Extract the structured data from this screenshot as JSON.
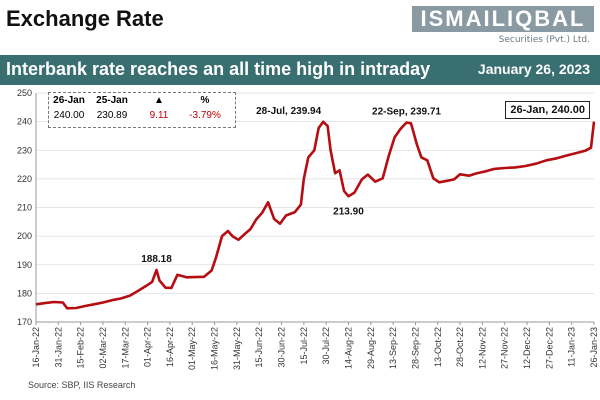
{
  "header": {
    "title": "Exchange Rate",
    "logo_main": "ISMAILIQBAL",
    "logo_sub": "Securities (Pvt.) Ltd.",
    "banner_text": "Interbank rate reaches an all time high in intraday",
    "banner_date": "January 26, 2023"
  },
  "info_box": {
    "headers": [
      "26-Jan",
      "25-Jan",
      "▲",
      "%"
    ],
    "values": [
      "240.00",
      "230.89",
      "9.11",
      "-3.79%"
    ]
  },
  "source": "Source: SBP, IIS Research",
  "colors": {
    "line": "#b50d12",
    "banner": "#3a6f72",
    "grid": "#dddddd"
  },
  "chart_data": {
    "type": "line",
    "title": "",
    "xlabel": "",
    "ylabel": "",
    "ylim": [
      170,
      250
    ],
    "yticks": [
      170,
      180,
      190,
      200,
      210,
      220,
      230,
      240,
      250
    ],
    "xticks": [
      "16-Jan-22",
      "31-Jan-22",
      "15-Feb-22",
      "02-Mar-22",
      "17-Mar-22",
      "01-Apr-22",
      "16-Apr-22",
      "01-May-22",
      "16-May-22",
      "31-May-22",
      "15-Jun-22",
      "30-Jun-22",
      "15-Jul-22",
      "30-Jul-22",
      "14-Aug-22",
      "29-Aug-22",
      "13-Sep-22",
      "28-Sep-22",
      "13-Oct-22",
      "28-Oct-22",
      "12-Nov-22",
      "27-Nov-22",
      "12-Dec-22",
      "27-Dec-22",
      "11-Jan-23",
      "26-Jan-23"
    ],
    "grid": true,
    "series": [
      {
        "values": [
          {
            "x": "2022-01-16",
            "y": 176.2
          },
          {
            "x": "2022-01-22",
            "y": 176.6
          },
          {
            "x": "2022-01-28",
            "y": 177.0
          },
          {
            "x": "2022-02-03",
            "y": 176.8
          },
          {
            "x": "2022-02-06",
            "y": 174.8
          },
          {
            "x": "2022-02-12",
            "y": 174.9
          },
          {
            "x": "2022-02-18",
            "y": 175.6
          },
          {
            "x": "2022-02-24",
            "y": 176.2
          },
          {
            "x": "2022-03-02",
            "y": 176.8
          },
          {
            "x": "2022-03-08",
            "y": 177.6
          },
          {
            "x": "2022-03-14",
            "y": 178.2
          },
          {
            "x": "2022-03-20",
            "y": 179.2
          },
          {
            "x": "2022-03-26",
            "y": 181.0
          },
          {
            "x": "2022-03-31",
            "y": 182.6
          },
          {
            "x": "2022-04-04",
            "y": 184.0
          },
          {
            "x": "2022-04-07",
            "y": 188.18
          },
          {
            "x": "2022-04-09",
            "y": 184.5
          },
          {
            "x": "2022-04-13",
            "y": 182.0
          },
          {
            "x": "2022-04-17",
            "y": 181.9
          },
          {
            "x": "2022-04-21",
            "y": 186.5
          },
          {
            "x": "2022-04-27",
            "y": 185.6
          },
          {
            "x": "2022-05-03",
            "y": 185.7
          },
          {
            "x": "2022-05-09",
            "y": 185.8
          },
          {
            "x": "2022-05-14",
            "y": 188.0
          },
          {
            "x": "2022-05-17",
            "y": 192.5
          },
          {
            "x": "2022-05-21",
            "y": 200.0
          },
          {
            "x": "2022-05-25",
            "y": 201.8
          },
          {
            "x": "2022-05-28",
            "y": 200.0
          },
          {
            "x": "2022-06-01",
            "y": 198.7
          },
          {
            "x": "2022-06-05",
            "y": 200.6
          },
          {
            "x": "2022-06-09",
            "y": 202.4
          },
          {
            "x": "2022-06-13",
            "y": 205.8
          },
          {
            "x": "2022-06-17",
            "y": 208.2
          },
          {
            "x": "2022-06-21",
            "y": 211.8
          },
          {
            "x": "2022-06-25",
            "y": 206.0
          },
          {
            "x": "2022-06-29",
            "y": 204.3
          },
          {
            "x": "2022-07-03",
            "y": 207.2
          },
          {
            "x": "2022-07-09",
            "y": 208.4
          },
          {
            "x": "2022-07-13",
            "y": 211.0
          },
          {
            "x": "2022-07-15",
            "y": 220.0
          },
          {
            "x": "2022-07-18",
            "y": 227.5
          },
          {
            "x": "2022-07-22",
            "y": 230.0
          },
          {
            "x": "2022-07-25",
            "y": 237.8
          },
          {
            "x": "2022-07-28",
            "y": 239.94
          },
          {
            "x": "2022-07-31",
            "y": 238.5
          },
          {
            "x": "2022-08-02",
            "y": 230.0
          },
          {
            "x": "2022-08-05",
            "y": 222.0
          },
          {
            "x": "2022-08-08",
            "y": 223.0
          },
          {
            "x": "2022-08-11",
            "y": 215.8
          },
          {
            "x": "2022-08-14",
            "y": 213.9
          },
          {
            "x": "2022-08-18",
            "y": 215.2
          },
          {
            "x": "2022-08-23",
            "y": 219.8
          },
          {
            "x": "2022-08-27",
            "y": 221.5
          },
          {
            "x": "2022-09-01",
            "y": 219.0
          },
          {
            "x": "2022-09-06",
            "y": 220.2
          },
          {
            "x": "2022-09-10",
            "y": 228.0
          },
          {
            "x": "2022-09-14",
            "y": 234.5
          },
          {
            "x": "2022-09-18",
            "y": 237.5
          },
          {
            "x": "2022-09-22",
            "y": 239.71
          },
          {
            "x": "2022-09-25",
            "y": 239.4
          },
          {
            "x": "2022-09-29",
            "y": 232.0
          },
          {
            "x": "2022-10-02",
            "y": 227.5
          },
          {
            "x": "2022-10-06",
            "y": 226.5
          },
          {
            "x": "2022-10-10",
            "y": 220.2
          },
          {
            "x": "2022-10-14",
            "y": 218.8
          },
          {
            "x": "2022-10-18",
            "y": 219.2
          },
          {
            "x": "2022-10-24",
            "y": 219.8
          },
          {
            "x": "2022-10-28",
            "y": 221.6
          },
          {
            "x": "2022-11-03",
            "y": 221.1
          },
          {
            "x": "2022-11-08",
            "y": 221.9
          },
          {
            "x": "2022-11-14",
            "y": 222.6
          },
          {
            "x": "2022-11-20",
            "y": 223.5
          },
          {
            "x": "2022-11-27",
            "y": 223.8
          },
          {
            "x": "2022-12-04",
            "y": 224.0
          },
          {
            "x": "2022-12-11",
            "y": 224.5
          },
          {
            "x": "2022-12-18",
            "y": 225.3
          },
          {
            "x": "2022-12-25",
            "y": 226.5
          },
          {
            "x": "2023-01-01",
            "y": 227.2
          },
          {
            "x": "2023-01-08",
            "y": 228.2
          },
          {
            "x": "2023-01-14",
            "y": 229.0
          },
          {
            "x": "2023-01-20",
            "y": 229.8
          },
          {
            "x": "2023-01-24",
            "y": 230.89
          },
          {
            "x": "2023-01-26",
            "y": 240.0
          }
        ]
      }
    ],
    "annotations": [
      {
        "x": "2022-04-07",
        "y": 188.18,
        "text": "188.18",
        "position": "above"
      },
      {
        "x": "2022-07-28",
        "y": 239.94,
        "text": "28-Jul, 239.94",
        "position": "above-left"
      },
      {
        "x": "2022-08-14",
        "y": 213.9,
        "text": "213.90",
        "position": "below"
      },
      {
        "x": "2022-09-22",
        "y": 239.71,
        "text": "22-Sep, 239.71",
        "position": "above"
      }
    ],
    "end_label": "26-Jan, 240.00"
  }
}
